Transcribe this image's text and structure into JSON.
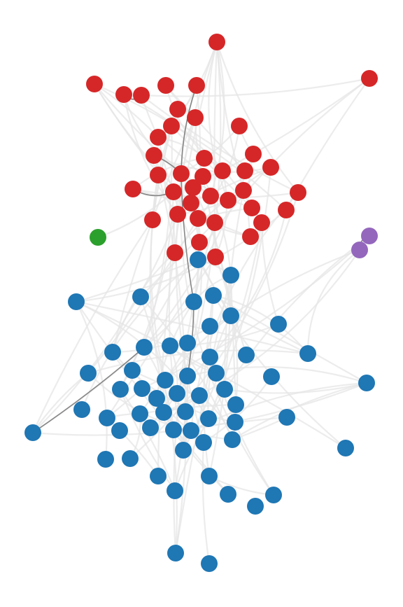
{
  "graph": {
    "type": "network",
    "communities": [
      {
        "id": "red",
        "color": "#d62728",
        "node_count": 44
      },
      {
        "id": "blue",
        "color": "#1f77b4",
        "node_count": 71
      },
      {
        "id": "green",
        "color": "#2ca02c",
        "node_count": 1
      },
      {
        "id": "purple",
        "color": "#9467bd",
        "node_count": 2
      }
    ],
    "edge_colors": {
      "light": "#e6e6e6",
      "dark": "#7a7a7a"
    }
  }
}
